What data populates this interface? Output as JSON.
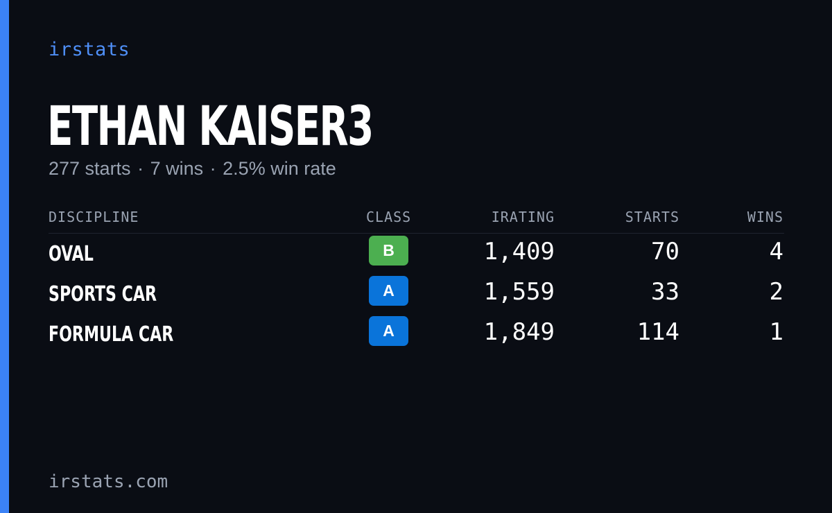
{
  "brand": "irstats",
  "driver": {
    "name": "ETHAN KAISER3",
    "summary": {
      "starts": "277 starts",
      "wins": "7 wins",
      "win_rate": "2.5% win rate",
      "separator": "·"
    }
  },
  "table": {
    "headers": {
      "discipline": "DISCIPLINE",
      "class": "CLASS",
      "irating": "IRATING",
      "starts": "STARTS",
      "wins": "WINS"
    },
    "rows": [
      {
        "discipline": "OVAL",
        "class": "B",
        "class_color": "#4caf50",
        "irating": "1,409",
        "starts": "70",
        "wins": "4"
      },
      {
        "discipline": "SPORTS CAR",
        "class": "A",
        "class_color": "#0a74da",
        "irating": "1,559",
        "starts": "33",
        "wins": "2"
      },
      {
        "discipline": "FORMULA CAR",
        "class": "A",
        "class_color": "#0a74da",
        "irating": "1,849",
        "starts": "114",
        "wins": "1"
      }
    ]
  },
  "footer": "irstats.com",
  "colors": {
    "background": "#0a0d14",
    "accent": "#3b82f6",
    "brand_text": "#4f8ff7",
    "muted_text": "#9aa3b2"
  }
}
